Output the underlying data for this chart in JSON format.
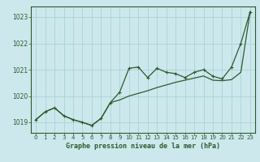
{
  "title": "Graphe pression niveau de la mer (hPa)",
  "bg_color": "#cce8ec",
  "grid_color": "#a8d4d8",
  "line_color": "#2d5a2d",
  "xlim": [
    -0.5,
    23.5
  ],
  "ylim": [
    1018.6,
    1023.4
  ],
  "yticks": [
    1019,
    1020,
    1021,
    1022,
    1023
  ],
  "xticks": [
    0,
    1,
    2,
    3,
    4,
    5,
    6,
    7,
    8,
    9,
    10,
    11,
    12,
    13,
    14,
    15,
    16,
    17,
    18,
    19,
    20,
    21,
    22,
    23
  ],
  "series1_x": [
    0,
    1,
    2,
    3,
    4,
    5,
    6,
    7,
    8,
    9,
    10,
    11,
    12,
    13,
    14,
    15,
    16,
    17,
    18,
    19,
    20,
    21,
    22,
    23
  ],
  "series1_y": [
    1019.1,
    1019.4,
    1019.55,
    1019.25,
    1019.1,
    1019.0,
    1018.88,
    1019.15,
    1019.75,
    1019.85,
    1020.0,
    1020.1,
    1020.2,
    1020.32,
    1020.42,
    1020.52,
    1020.6,
    1020.68,
    1020.76,
    1020.6,
    1020.58,
    1020.62,
    1020.9,
    1023.2
  ],
  "series2_x": [
    0,
    1,
    2,
    3,
    4,
    5,
    6,
    7,
    8,
    9,
    10,
    11,
    12,
    13,
    14,
    15,
    16,
    17,
    18,
    19,
    20,
    21,
    22,
    23
  ],
  "series2_y": [
    1019.1,
    1019.4,
    1019.55,
    1019.25,
    1019.1,
    1019.0,
    1018.88,
    1019.15,
    1019.75,
    1020.15,
    1021.05,
    1021.1,
    1020.7,
    1021.05,
    1020.9,
    1020.85,
    1020.7,
    1020.9,
    1021.0,
    1020.75,
    1020.65,
    1021.1,
    1022.0,
    1023.2
  ]
}
